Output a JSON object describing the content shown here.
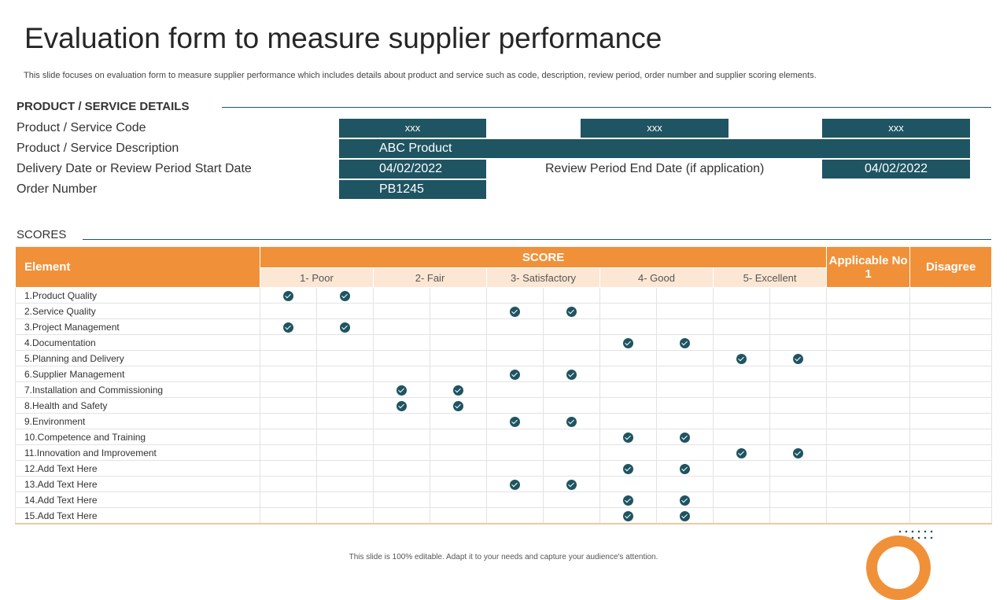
{
  "title": "Evaluation form to measure supplier performance",
  "subtitle": "This slide focuses on evaluation form to measure supplier performance which includes details about product and service such as code, description, review period, order number and supplier scoring elements.",
  "details": {
    "heading": "PRODUCT / SERVICE DETAILS",
    "code_label": "Product / Service Code",
    "code_values": [
      "xxx",
      "xxx",
      "xxx"
    ],
    "description_label": "Product / Service Description",
    "description_value": "ABC Product",
    "start_label": "Delivery Date or Review Period Start Date",
    "start_value": "04/02/2022",
    "end_label": "Review Period End Date (if application)",
    "end_value": "04/02/2022",
    "order_label": "Order Number",
    "order_value": "PB1245"
  },
  "scores": {
    "heading": "SCORES",
    "element_header": "Element",
    "score_header": "SCORE",
    "applicable_header": "Applicable No 1",
    "disagree_header": "Disagree",
    "levels": [
      "1- Poor",
      "2- Fair",
      "3- Satisfactory",
      "4- Good",
      "5- Excellent"
    ],
    "check_icon": "check-circle-icon",
    "rows": [
      {
        "element": "1.Product Quality",
        "score": 1
      },
      {
        "element": "2.Service Quality",
        "score": 3
      },
      {
        "element": "3.Project Management",
        "score": 1
      },
      {
        "element": "4.Documentation",
        "score": 4
      },
      {
        "element": "5.Planning and Delivery",
        "score": 5
      },
      {
        "element": "6.Supplier Management",
        "score": 3
      },
      {
        "element": "7.Installation and Commissioning",
        "score": 2
      },
      {
        "element": "8.Health and Safety",
        "score": 2
      },
      {
        "element": "9.Environment",
        "score": 3
      },
      {
        "element": "10.Competence and Training",
        "score": 4
      },
      {
        "element": "11.Innovation and Improvement",
        "score": 5
      },
      {
        "element": "12.Add Text Here",
        "score": 4
      },
      {
        "element": "13.Add Text Here",
        "score": 3
      },
      {
        "element": "14.Add Text Here",
        "score": 4
      },
      {
        "element": "15.Add Text Here",
        "score": 4
      }
    ]
  },
  "footer": "This slide is 100% editable. Adapt it to your needs and capture your audience's attention.",
  "colors": {
    "teal": "#1f5462",
    "orange": "#f0913a",
    "peach": "#fce7d4"
  }
}
